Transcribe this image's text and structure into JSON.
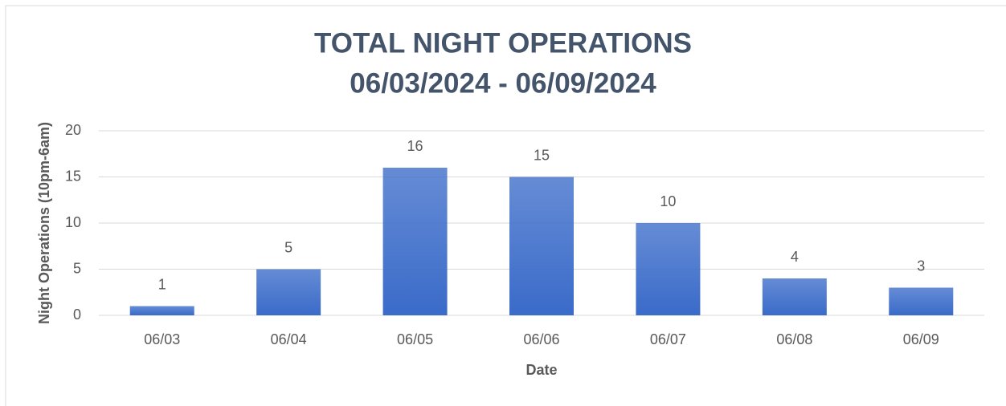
{
  "chart_data": {
    "type": "bar",
    "title": "TOTAL NIGHT OPERATIONS",
    "subtitle": "06/03/2024 - 06/09/2024",
    "x_label": "Date",
    "y_label": "Night Operations (10pm-6am)",
    "categories": [
      "06/03",
      "06/04",
      "06/05",
      "06/06",
      "06/07",
      "06/08",
      "06/09"
    ],
    "values": [
      1,
      5,
      16,
      15,
      10,
      4,
      3
    ],
    "color": "#3a6bc9",
    "ylim": [
      0,
      20
    ],
    "yticks": [
      0,
      5,
      10,
      15,
      20
    ],
    "grid": true
  }
}
